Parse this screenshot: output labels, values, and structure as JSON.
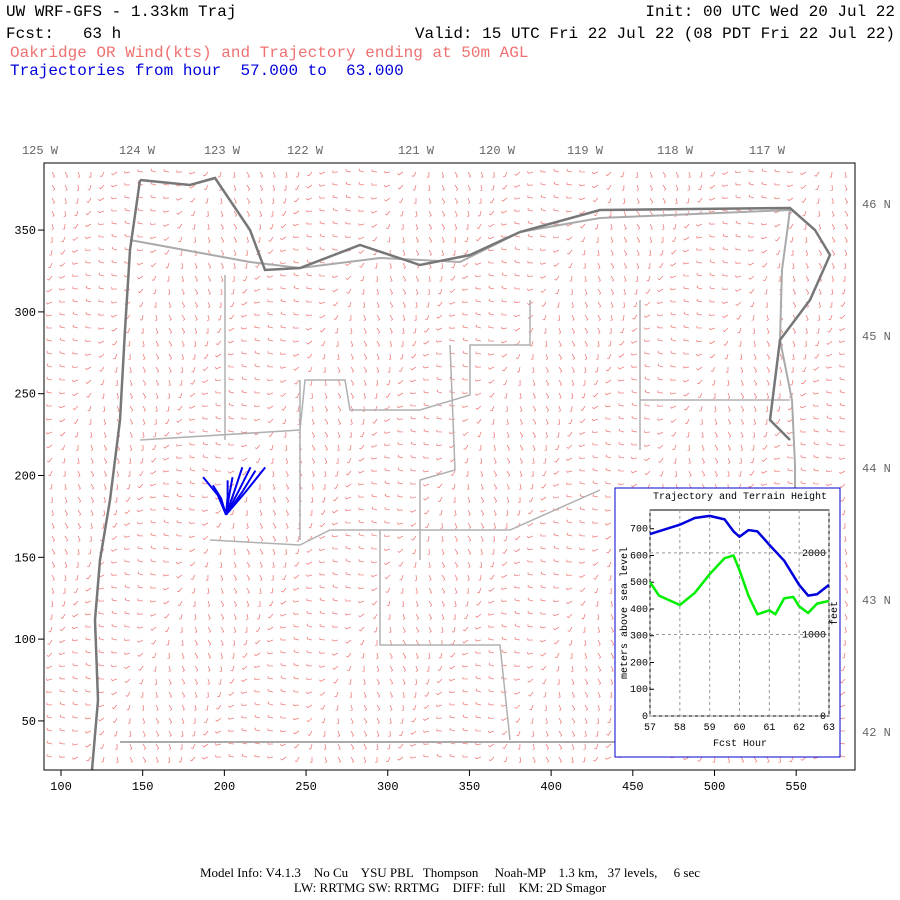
{
  "header": {
    "title": "UW WRF-GFS - 1.33km Traj",
    "forecast": "Fcst:   63 h",
    "init": "Init: 00 UTC Wed 20 Jul 22",
    "valid": "Valid: 15 UTC Fri 22 Jul 22 (08 PDT Fri 22 Jul 22)",
    "subtitle": "Oakridge OR Wind(kts) and Trajectory ending at 50m AGL",
    "trajectory_note": "Trajectories from hour  57.000 to  63.000"
  },
  "map": {
    "xlim": [
      89.6,
      586
    ],
    "xticks": [
      100,
      150,
      200,
      250,
      300,
      350,
      400,
      450,
      500,
      550
    ],
    "ylim": [
      20,
      391
    ],
    "yticks": [
      50,
      100,
      150,
      200,
      250,
      300,
      350
    ],
    "lon_labels": [
      "125 W",
      "124 W",
      "123 W",
      "122 W",
      "121 W",
      "120 W",
      "119 W",
      "118 W",
      "117 W"
    ],
    "lat_labels": [
      "46 N",
      "45 N",
      "44 N",
      "43 N",
      "42 N"
    ],
    "trajectory_color": "#0000ee",
    "trajectories": [
      [
        [
          201,
          176
        ],
        [
          206,
          190
        ],
        [
          211,
          205
        ]
      ],
      [
        [
          201,
          176
        ],
        [
          209,
          191
        ],
        [
          216,
          205
        ]
      ],
      [
        [
          201,
          176
        ],
        [
          211,
          190
        ],
        [
          219,
          203
        ]
      ],
      [
        [
          201,
          176
        ],
        [
          213,
          190
        ],
        [
          225,
          205
        ]
      ],
      [
        [
          201,
          176
        ],
        [
          202,
          187
        ],
        [
          202,
          197
        ]
      ],
      [
        [
          201,
          176
        ],
        [
          203,
          188
        ],
        [
          205,
          199
        ]
      ],
      [
        [
          201,
          176
        ],
        [
          196,
          188
        ],
        [
          187,
          199
        ]
      ],
      [
        [
          201,
          176
        ],
        [
          198,
          186
        ],
        [
          193,
          194
        ]
      ]
    ]
  },
  "inset": {
    "type": "line",
    "title": "Trajectory and Terrain Height",
    "xlabel": "Fcst Hour",
    "ylabel": "meters above sea level",
    "y2label": "feet",
    "xlim": [
      57,
      63
    ],
    "xticks": [
      57,
      58,
      59,
      60,
      61,
      62,
      63
    ],
    "ylim": [
      0,
      770
    ],
    "yticks": [
      0,
      100,
      200,
      300,
      400,
      500,
      600,
      700
    ],
    "y2lim": [
      0,
      2526
    ],
    "y2ticks": [
      0,
      1000,
      2000
    ],
    "series": [
      {
        "color": "#0000dd",
        "x": [
          57,
          58,
          58.5,
          59,
          59.5,
          59.8,
          60,
          60.3,
          60.6,
          61,
          61.5,
          62,
          62.3,
          62.6,
          63
        ],
        "values": [
          680,
          715,
          740,
          748,
          735,
          690,
          670,
          695,
          690,
          640,
          580,
          490,
          450,
          455,
          490
        ]
      },
      {
        "color": "#00ee00",
        "x": [
          57,
          57.3,
          58,
          58.5,
          59,
          59.5,
          59.8,
          60,
          60.3,
          60.6,
          61,
          61.2,
          61.5,
          61.8,
          62,
          62.3,
          62.6,
          63
        ],
        "values": [
          500,
          450,
          415,
          460,
          530,
          590,
          600,
          545,
          450,
          380,
          395,
          380,
          440,
          445,
          410,
          385,
          420,
          430
        ]
      }
    ]
  },
  "footer": {
    "line1": "Model Info: V4.1.3    No Cu    YSU PBL   Thompson     Noah-MP    1.3 km,   37 levels,     6 sec",
    "line2": "LW: RRTMG SW: RRTMG    DIFF: full    KM: 2D Smagor"
  }
}
